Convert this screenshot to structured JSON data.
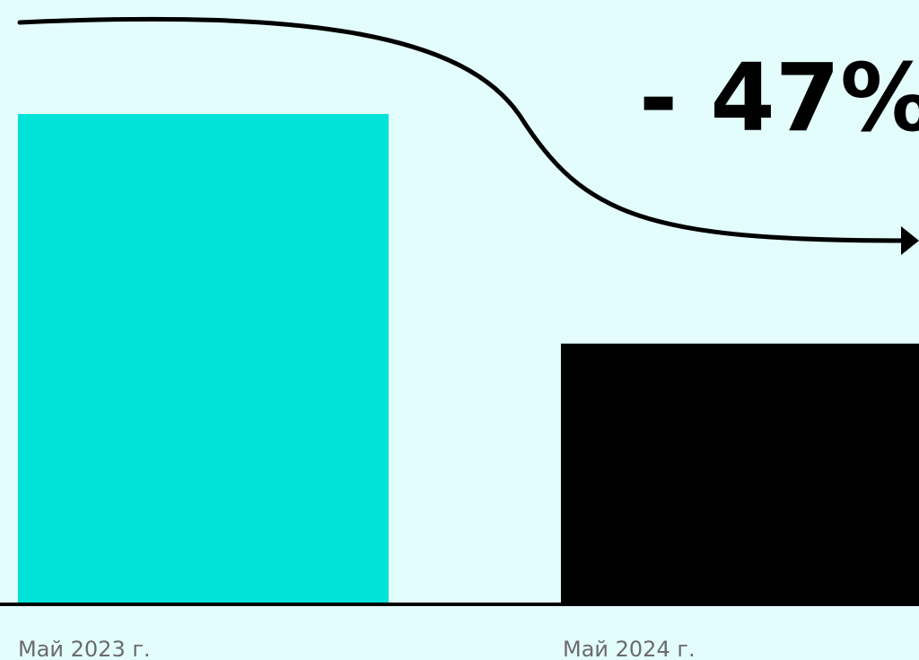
{
  "chart_data": {
    "type": "bar",
    "categories": [
      "Май 2023 г.",
      "Май 2024 г."
    ],
    "values": [
      100,
      53
    ],
    "ylim": [
      0,
      100
    ],
    "grid": false,
    "legend": "none",
    "colors": [
      "#00e3d8",
      "#000000"
    ],
    "annotation": "- 47%",
    "title": "",
    "xlabel": "",
    "ylabel": ""
  },
  "background_color": "#e3fdfd",
  "axis_color": "#000000",
  "label_color": "#6b6b6b"
}
